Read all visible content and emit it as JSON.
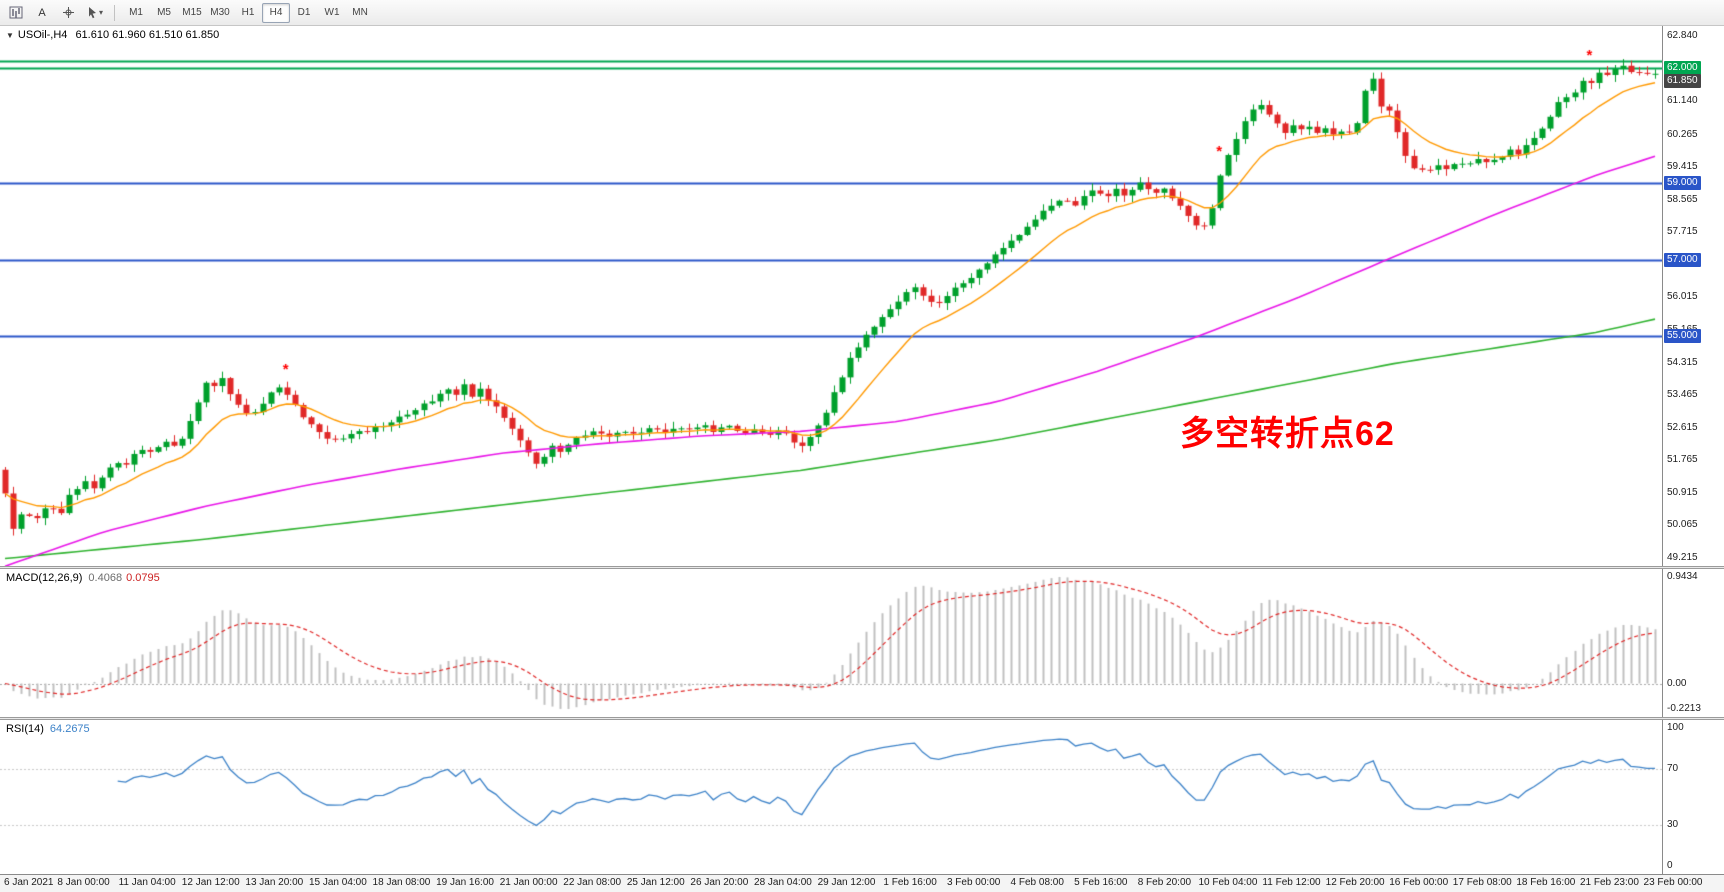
{
  "toolbar": {
    "text_tool_label": "A",
    "chevron_glyph": "▾",
    "timeframes": [
      "M1",
      "M5",
      "M15",
      "M30",
      "H1",
      "H4",
      "D1",
      "W1",
      "MN"
    ],
    "active_timeframe": "H4"
  },
  "chart": {
    "menu_triangle": "▼",
    "title_symbol": "USOil-,H4",
    "title_ohlc": "61.610 61.960 61.510 61.850",
    "annotation": {
      "text": "多空转折点62",
      "color": "#ff0000"
    }
  },
  "macd": {
    "label": "MACD(12,26,9)",
    "value_main": "0.4068",
    "value_signal": "0.0795",
    "axis_max": "0.9434",
    "axis_zero": "0.00",
    "axis_min": "-0.2213"
  },
  "rsi": {
    "label": "RSI(14)",
    "value": "64.2675",
    "axis_labels": [
      {
        "text": "100",
        "value": 100
      },
      {
        "text": "70",
        "value": 70
      },
      {
        "text": "30",
        "value": 30
      },
      {
        "text": "0",
        "value": 0
      }
    ],
    "levels": [
      70,
      30
    ]
  },
  "chart_data": {
    "type": "candlestick",
    "symbol": "USOil-",
    "timeframe": "H4",
    "current_ohlc": {
      "open": 61.61,
      "high": 61.96,
      "low": 61.51,
      "close": 61.85
    },
    "y_axis": {
      "min": 49.215,
      "max": 62.84,
      "labels": [
        "62.840",
        "61.990",
        "61.140",
        "60.265",
        "59.415",
        "58.565",
        "57.715",
        "56.865",
        "56.015",
        "55.165",
        "54.315",
        "53.465",
        "52.615",
        "51.765",
        "50.915",
        "50.065",
        "49.215"
      ]
    },
    "x_labels": [
      "6 Jan 2021",
      "8 Jan 00:00",
      "11 Jan 04:00",
      "12 Jan 12:00",
      "13 Jan 20:00",
      "15 Jan 04:00",
      "18 Jan 08:00",
      "19 Jan 16:00",
      "21 Jan 00:00",
      "22 Jan 08:00",
      "25 Jan 12:00",
      "26 Jan 20:00",
      "28 Jan 04:00",
      "29 Jan 12:00",
      "1 Feb 16:00",
      "3 Feb 00:00",
      "4 Feb 08:00",
      "5 Feb 16:00",
      "8 Feb 20:00",
      "10 Feb 04:00",
      "11 Feb 12:00",
      "12 Feb 20:00",
      "16 Feb 00:00",
      "17 Feb 08:00",
      "18 Feb 16:00",
      "21 Feb 23:00",
      "23 Feb 00:00"
    ],
    "candles_count": 206,
    "noise_amplitude": 0.1,
    "wick_amplitude": 0.17,
    "close_keyframes": [
      [
        0.0,
        50.9
      ],
      [
        0.004,
        49.95
      ],
      [
        0.01,
        50.35
      ],
      [
        0.018,
        50.2
      ],
      [
        0.026,
        50.55
      ],
      [
        0.034,
        50.4
      ],
      [
        0.04,
        50.9
      ],
      [
        0.048,
        51.2
      ],
      [
        0.054,
        51.05
      ],
      [
        0.06,
        51.45
      ],
      [
        0.066,
        51.75
      ],
      [
        0.072,
        51.55
      ],
      [
        0.078,
        51.95
      ],
      [
        0.084,
        52.1
      ],
      [
        0.09,
        51.9
      ],
      [
        0.096,
        52.3
      ],
      [
        0.102,
        52.15
      ],
      [
        0.108,
        52.4
      ],
      [
        0.114,
        52.9
      ],
      [
        0.118,
        53.4
      ],
      [
        0.123,
        53.95
      ],
      [
        0.127,
        53.7
      ],
      [
        0.131,
        53.95
      ],
      [
        0.136,
        53.55
      ],
      [
        0.142,
        53.2
      ],
      [
        0.148,
        52.95
      ],
      [
        0.154,
        53.15
      ],
      [
        0.16,
        53.45
      ],
      [
        0.165,
        53.75
      ],
      [
        0.17,
        53.55
      ],
      [
        0.176,
        53.2
      ],
      [
        0.182,
        52.8
      ],
      [
        0.19,
        52.5
      ],
      [
        0.198,
        52.3
      ],
      [
        0.207,
        52.4
      ],
      [
        0.216,
        52.5
      ],
      [
        0.225,
        52.62
      ],
      [
        0.234,
        52.75
      ],
      [
        0.243,
        52.95
      ],
      [
        0.252,
        53.15
      ],
      [
        0.261,
        53.42
      ],
      [
        0.268,
        53.65
      ],
      [
        0.273,
        53.5
      ],
      [
        0.278,
        53.72
      ],
      [
        0.283,
        53.45
      ],
      [
        0.288,
        53.6
      ],
      [
        0.294,
        53.3
      ],
      [
        0.3,
        53.0
      ],
      [
        0.306,
        52.65
      ],
      [
        0.312,
        52.25
      ],
      [
        0.318,
        51.9
      ],
      [
        0.323,
        51.65
      ],
      [
        0.328,
        51.95
      ],
      [
        0.333,
        52.2
      ],
      [
        0.338,
        51.9
      ],
      [
        0.343,
        52.25
      ],
      [
        0.35,
        52.4
      ],
      [
        0.358,
        52.5
      ],
      [
        0.366,
        52.35
      ],
      [
        0.374,
        52.55
      ],
      [
        0.382,
        52.45
      ],
      [
        0.39,
        52.6
      ],
      [
        0.398,
        52.5
      ],
      [
        0.406,
        52.65
      ],
      [
        0.414,
        52.55
      ],
      [
        0.422,
        52.7
      ],
      [
        0.43,
        52.5
      ],
      [
        0.438,
        52.65
      ],
      [
        0.446,
        52.45
      ],
      [
        0.454,
        52.6
      ],
      [
        0.462,
        52.4
      ],
      [
        0.47,
        52.55
      ],
      [
        0.477,
        52.28
      ],
      [
        0.482,
        52.05
      ],
      [
        0.487,
        52.3
      ],
      [
        0.492,
        52.6
      ],
      [
        0.497,
        52.95
      ],
      [
        0.502,
        53.45
      ],
      [
        0.507,
        53.95
      ],
      [
        0.512,
        54.4
      ],
      [
        0.517,
        54.75
      ],
      [
        0.522,
        55.05
      ],
      [
        0.528,
        55.3
      ],
      [
        0.534,
        55.55
      ],
      [
        0.54,
        55.85
      ],
      [
        0.546,
        56.1
      ],
      [
        0.552,
        56.32
      ],
      [
        0.558,
        55.95
      ],
      [
        0.564,
        55.75
      ],
      [
        0.57,
        56.05
      ],
      [
        0.576,
        56.25
      ],
      [
        0.582,
        56.42
      ],
      [
        0.588,
        56.62
      ],
      [
        0.594,
        56.9
      ],
      [
        0.6,
        57.15
      ],
      [
        0.606,
        57.35
      ],
      [
        0.612,
        57.55
      ],
      [
        0.618,
        57.8
      ],
      [
        0.624,
        58.05
      ],
      [
        0.63,
        58.3
      ],
      [
        0.636,
        58.5
      ],
      [
        0.642,
        58.65
      ],
      [
        0.648,
        58.42
      ],
      [
        0.654,
        58.65
      ],
      [
        0.66,
        58.85
      ],
      [
        0.666,
        58.6
      ],
      [
        0.672,
        58.85
      ],
      [
        0.678,
        58.65
      ],
      [
        0.684,
        58.9
      ],
      [
        0.69,
        59.02
      ],
      [
        0.696,
        58.72
      ],
      [
        0.702,
        58.9
      ],
      [
        0.708,
        58.6
      ],
      [
        0.714,
        58.3
      ],
      [
        0.72,
        57.95
      ],
      [
        0.726,
        57.8
      ],
      [
        0.731,
        58.25
      ],
      [
        0.736,
        59.1
      ],
      [
        0.741,
        59.65
      ],
      [
        0.746,
        60.15
      ],
      [
        0.751,
        60.6
      ],
      [
        0.756,
        60.88
      ],
      [
        0.761,
        61.05
      ],
      [
        0.766,
        60.8
      ],
      [
        0.771,
        60.5
      ],
      [
        0.776,
        60.3
      ],
      [
        0.781,
        60.55
      ],
      [
        0.786,
        60.35
      ],
      [
        0.791,
        60.52
      ],
      [
        0.796,
        60.32
      ],
      [
        0.801,
        60.48
      ],
      [
        0.806,
        60.26
      ],
      [
        0.811,
        60.42
      ],
      [
        0.816,
        60.22
      ],
      [
        0.819,
        60.48
      ],
      [
        0.822,
        60.98
      ],
      [
        0.825,
        61.55
      ],
      [
        0.827,
        62.05
      ],
      [
        0.829,
        61.8
      ],
      [
        0.832,
        61.3
      ],
      [
        0.835,
        60.95
      ],
      [
        0.838,
        61.05
      ],
      [
        0.841,
        60.7
      ],
      [
        0.844,
        60.35
      ],
      [
        0.847,
        59.95
      ],
      [
        0.85,
        59.6
      ],
      [
        0.853,
        59.38
      ],
      [
        0.856,
        59.22
      ],
      [
        0.86,
        59.45
      ],
      [
        0.864,
        59.3
      ],
      [
        0.868,
        59.5
      ],
      [
        0.872,
        59.35
      ],
      [
        0.876,
        59.55
      ],
      [
        0.88,
        59.42
      ],
      [
        0.884,
        59.6
      ],
      [
        0.888,
        59.46
      ],
      [
        0.892,
        59.62
      ],
      [
        0.896,
        59.5
      ],
      [
        0.9,
        59.66
      ],
      [
        0.904,
        59.55
      ],
      [
        0.908,
        59.72
      ],
      [
        0.912,
        59.86
      ],
      [
        0.916,
        59.72
      ],
      [
        0.92,
        59.92
      ],
      [
        0.924,
        60.08
      ],
      [
        0.928,
        60.22
      ],
      [
        0.932,
        60.4
      ],
      [
        0.936,
        60.68
      ],
      [
        0.94,
        61.0
      ],
      [
        0.944,
        61.3
      ],
      [
        0.948,
        61.15
      ],
      [
        0.952,
        61.48
      ],
      [
        0.956,
        61.72
      ],
      [
        0.96,
        61.55
      ],
      [
        0.964,
        61.82
      ],
      [
        0.968,
        62.02
      ],
      [
        0.972,
        61.78
      ],
      [
        0.976,
        61.98
      ],
      [
        0.98,
        62.12
      ],
      [
        0.984,
        61.86
      ],
      [
        0.988,
        62.02
      ],
      [
        0.992,
        61.72
      ],
      [
        0.996,
        61.92
      ],
      [
        1.0,
        61.85
      ]
    ],
    "hlines": [
      {
        "price": 62.2,
        "color": "#00a651",
        "width": 2
      },
      {
        "price": 62.0,
        "color": "#00a651",
        "width": 2,
        "label": "62.000"
      },
      {
        "price": 59.0,
        "color": "#2a55c8",
        "width": 2,
        "label": "59.000"
      },
      {
        "price": 57.0,
        "color": "#2a55c8",
        "width": 2,
        "label": "57.000"
      },
      {
        "price": 55.0,
        "color": "#2a55c8",
        "width": 2,
        "label": "55.000"
      }
    ],
    "current_price": {
      "value": 61.85,
      "label": "61.850",
      "bg": "#454545"
    },
    "ma_fast": {
      "type": "ema",
      "period": 12,
      "color": "#ff9900"
    },
    "ma_mid": {
      "color": "#e816e8",
      "keyframes": [
        [
          0.0,
          49.0
        ],
        [
          0.06,
          49.9
        ],
        [
          0.12,
          50.55
        ],
        [
          0.181,
          51.1
        ],
        [
          0.241,
          51.55
        ],
        [
          0.301,
          51.95
        ],
        [
          0.361,
          52.2
        ],
        [
          0.422,
          52.4
        ],
        [
          0.482,
          52.52
        ],
        [
          0.542,
          52.78
        ],
        [
          0.602,
          53.3
        ],
        [
          0.663,
          54.1
        ],
        [
          0.723,
          55.0
        ],
        [
          0.783,
          56.0
        ],
        [
          0.843,
          57.1
        ],
        [
          0.904,
          58.2
        ],
        [
          0.964,
          59.2
        ],
        [
          1.0,
          59.7
        ]
      ]
    },
    "ma_slow": {
      "color": "#30b330",
      "keyframes": [
        [
          0.0,
          49.2
        ],
        [
          0.12,
          49.7
        ],
        [
          0.241,
          50.3
        ],
        [
          0.361,
          50.9
        ],
        [
          0.482,
          51.5
        ],
        [
          0.602,
          52.3
        ],
        [
          0.723,
          53.3
        ],
        [
          0.843,
          54.3
        ],
        [
          0.964,
          55.1
        ],
        [
          1.0,
          55.45
        ]
      ]
    },
    "markers": [
      {
        "t": 0.17,
        "price": 54.15
      },
      {
        "t": 0.736,
        "price": 59.85
      },
      {
        "t": 0.962,
        "price": 62.35
      }
    ],
    "colors": {
      "up": "#00a02c",
      "down": "#e02828",
      "macd_hist": "#c0c0c0",
      "macd_signal": "#e02828",
      "rsi_line": "#3c82c8",
      "level_dotted": "#c8c8c8",
      "marker": "#ff0000"
    }
  }
}
